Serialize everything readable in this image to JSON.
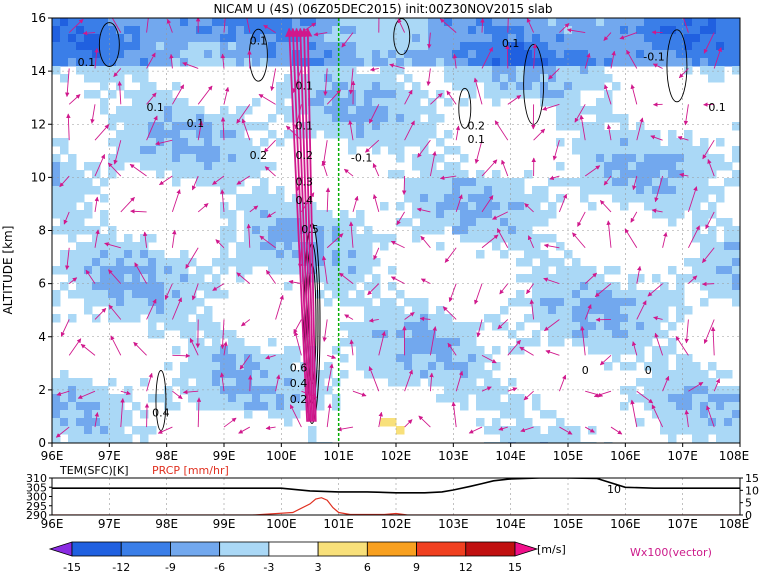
{
  "title": "NICAM U (4S) (06Z05DEC2015) init:00Z30NOV2015 slab",
  "chart_data": [
    {
      "type": "heatmap",
      "variable": "U",
      "ylabel": "ALTITUDE [km]",
      "xlabel": "",
      "x_ticks": [
        "96E",
        "97E",
        "98E",
        "99E",
        "100E",
        "101E",
        "102E",
        "103E",
        "104E",
        "105E",
        "106E",
        "107E",
        "108E"
      ],
      "xlim": [
        96,
        108
      ],
      "y_ticks": [
        "0",
        "2",
        "4",
        "6",
        "8",
        "10",
        "12",
        "14",
        "16"
      ],
      "ylim": [
        0,
        16
      ],
      "grid": true,
      "vertical_line_x": 101,
      "vertical_line_color": "#00b000",
      "contour_labels": [
        {
          "text": "0.1",
          "x": 99.6,
          "y": 15.0
        },
        {
          "text": "0.1",
          "x": 96.6,
          "y": 14.2
        },
        {
          "text": "0.1",
          "x": 97.8,
          "y": 12.5
        },
        {
          "text": "0.1",
          "x": 98.5,
          "y": 11.9
        },
        {
          "text": "0.1",
          "x": 100.4,
          "y": 13.3
        },
        {
          "text": "0.1",
          "x": 100.4,
          "y": 11.8
        },
        {
          "text": "0.2",
          "x": 99.6,
          "y": 10.7
        },
        {
          "text": "0.2",
          "x": 100.4,
          "y": 10.7
        },
        {
          "text": "-0.1",
          "x": 101.4,
          "y": 10.6
        },
        {
          "text": "0.3",
          "x": 100.4,
          "y": 9.7
        },
        {
          "text": "0.4",
          "x": 100.4,
          "y": 9.0
        },
        {
          "text": "0.5",
          "x": 100.5,
          "y": 7.9
        },
        {
          "text": "0.1",
          "x": 104.0,
          "y": 14.9
        },
        {
          "text": "0.2",
          "x": 103.4,
          "y": 11.8
        },
        {
          "text": "0.1",
          "x": 103.4,
          "y": 11.3
        },
        {
          "text": "-0.1",
          "x": 106.5,
          "y": 14.4
        },
        {
          "text": "0.1",
          "x": 107.6,
          "y": 12.5
        },
        {
          "text": "0.4",
          "x": 97.9,
          "y": 1.0
        },
        {
          "text": "0.6",
          "x": 100.3,
          "y": 2.7
        },
        {
          "text": "0.4",
          "x": 100.3,
          "y": 2.1
        },
        {
          "text": "0.2",
          "x": 100.3,
          "y": 1.5
        },
        {
          "text": "0",
          "x": 105.3,
          "y": 2.6
        },
        {
          "text": "0",
          "x": 106.4,
          "y": 2.6
        }
      ],
      "colorbar": {
        "levels": [
          "-15",
          "-12",
          "-9",
          "-6",
          "-3",
          "3",
          "6",
          "9",
          "12",
          "15"
        ],
        "unit": "[m/s]",
        "colors": [
          "#8a2be2",
          "#2060e0",
          "#3a7ee8",
          "#72a8ee",
          "#aad8f6",
          "#ffffff",
          "#f8e07a",
          "#f8a020",
          "#f04020",
          "#c01010",
          "#f0108a"
        ]
      },
      "vector_label": "Wx100(vector)"
    },
    {
      "type": "line",
      "left_label": "TEM(SFC)[K]",
      "right_label": "PRCP [mm/hr]",
      "left_ticks": [
        "310",
        "305",
        "300",
        "295",
        "290"
      ],
      "right_ticks": [
        "15",
        "10",
        "5",
        "0"
      ],
      "left_ylim": [
        290,
        310
      ],
      "right_ylim": [
        0,
        15
      ],
      "x_ticks": [
        "96E",
        "97E",
        "98E",
        "99E",
        "100E",
        "101E",
        "102E",
        "103E",
        "104E",
        "105E",
        "106E",
        "107E",
        "108E"
      ],
      "line_annotation": "10",
      "series": [
        {
          "name": "TEM(SFC)[K]",
          "color": "#000000",
          "x": [
            96,
            96.5,
            97,
            98,
            99,
            100,
            100.5,
            101,
            101.5,
            102,
            102.5,
            102.8,
            103,
            103.3,
            103.5,
            103.7,
            104,
            104.5,
            105,
            105.5,
            106,
            106.5,
            107,
            107.5,
            108
          ],
          "y": [
            304.5,
            304.5,
            304.5,
            304.5,
            304.5,
            304.5,
            303.0,
            302.5,
            302.5,
            302.0,
            302.0,
            302.5,
            303.5,
            305.5,
            307.0,
            308.5,
            309.5,
            310.0,
            310.0,
            309.8,
            305.0,
            304.5,
            304.5,
            304.5,
            304.5
          ]
        },
        {
          "name": "PRCP [mm/hr]",
          "color": "#e03020",
          "x": [
            96,
            99.5,
            100.2,
            100.5,
            100.6,
            100.7,
            100.8,
            100.9,
            101.0,
            101.2,
            101.8,
            102.0,
            102.2,
            108
          ],
          "y": [
            0,
            0,
            1.0,
            4.5,
            6.5,
            7.0,
            6.0,
            3.0,
            1.0,
            0.2,
            0.2,
            0.6,
            0,
            0
          ]
        }
      ]
    }
  ]
}
